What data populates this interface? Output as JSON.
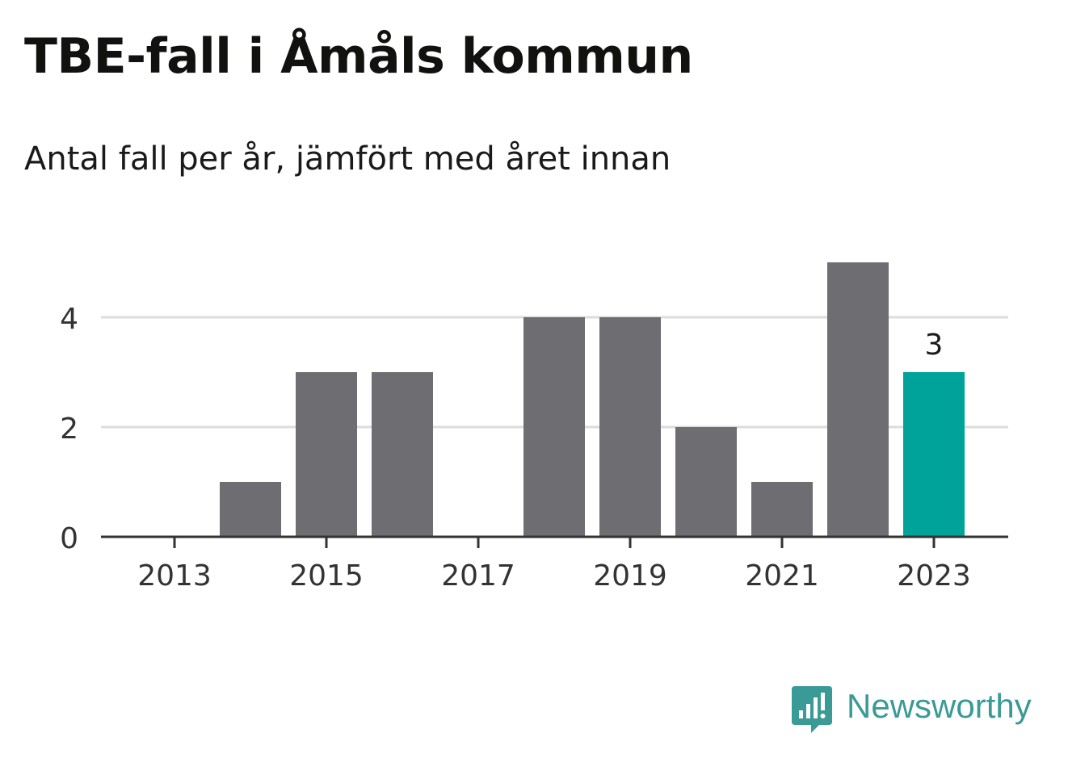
{
  "chart_data": {
    "type": "bar",
    "title": "TBE-fall i Åmåls kommun",
    "subtitle": "Antal fall per år, jämfört med året innan",
    "categories": [
      2013,
      2014,
      2015,
      2016,
      2017,
      2018,
      2019,
      2020,
      2021,
      2022,
      2023
    ],
    "values": [
      0,
      1,
      3,
      3,
      0,
      4,
      4,
      2,
      1,
      5,
      3
    ],
    "highlight": {
      "category": 2023,
      "value_label": "3",
      "color": "#00a39a"
    },
    "bar_color": "#6e6d72",
    "x_ticks": [
      "2013",
      "2015",
      "2017",
      "2019",
      "2021",
      "2023"
    ],
    "y_ticks": [
      "0",
      "2",
      "4"
    ],
    "ylim": [
      0,
      5
    ],
    "grid": true,
    "xlabel": "",
    "ylabel": ""
  },
  "brand": {
    "name": "Newsworthy",
    "color": "#3a9a96",
    "icon": "bar-chart-speech-bubble-icon"
  }
}
